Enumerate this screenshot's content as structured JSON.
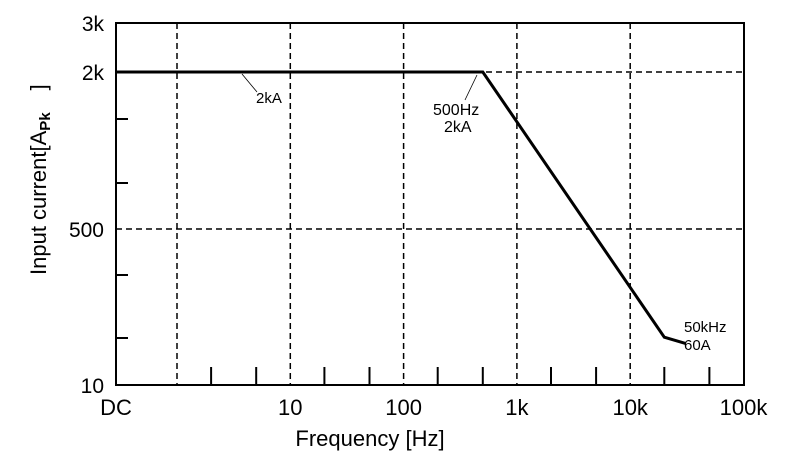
{
  "chart_data": {
    "type": "line",
    "title": "",
    "xlabel": "Frequency [Hz]",
    "ylabel": "Input current[A",
    "ylabel_sub": "Pk",
    "ylabel_end": "]",
    "x_scale": "log",
    "x_ticks": [
      {
        "value": "DC",
        "label": "DC"
      },
      {
        "value": 10,
        "label": "10"
      },
      {
        "value": 100,
        "label": "100"
      },
      {
        "value": 1000,
        "label": "1k"
      },
      {
        "value": 10000,
        "label": "10k"
      },
      {
        "value": 100000,
        "label": "100k"
      }
    ],
    "x_grid": [
      1,
      10,
      100,
      1000,
      10000
    ],
    "x_minor": [
      2,
      5,
      20,
      50,
      200,
      500,
      2000,
      5000,
      20000,
      50000
    ],
    "y_ticks": [
      {
        "value": 10,
        "label": "10"
      },
      {
        "value": 500,
        "label": "500"
      },
      {
        "value": 2000,
        "label": "2k"
      },
      {
        "value": 3000,
        "label": "3k"
      }
    ],
    "y_grid": [
      500,
      2000
    ],
    "grid": "dashed",
    "series": [
      {
        "points": [
          [
            "DC",
            2000
          ],
          [
            500,
            2000
          ],
          [
            20000,
            160
          ],
          [
            31000,
            140
          ]
        ],
        "color": "#000000"
      }
    ],
    "annotations": [
      {
        "lines": [
          "2kA"
        ],
        "note": "DC level"
      },
      {
        "lines": [
          "500Hz",
          "2kA"
        ]
      },
      {
        "lines": [
          "50kHz",
          "60A"
        ]
      }
    ]
  }
}
